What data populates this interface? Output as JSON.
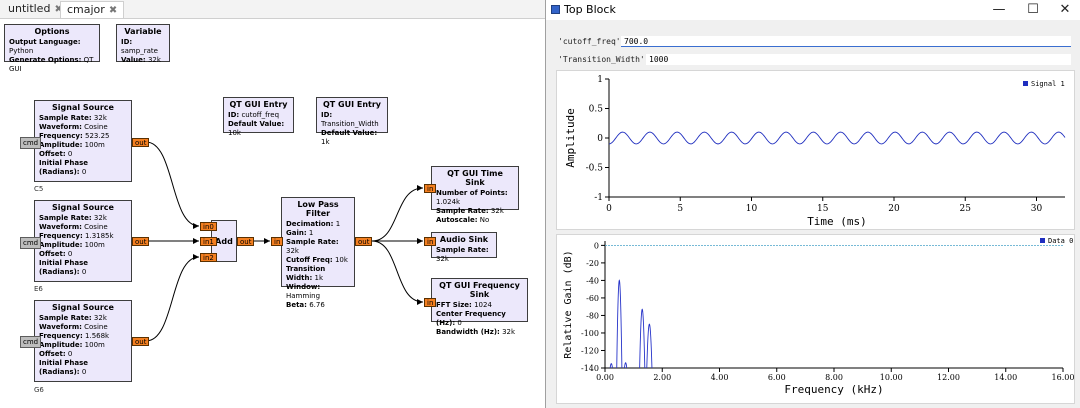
{
  "editor": {
    "tabs": [
      {
        "label": "untitled",
        "close": "✖"
      },
      {
        "label": "cmajor",
        "close": "✖"
      }
    ],
    "options_block": {
      "title": "Options",
      "lines": [
        {
          "k": "Output Language:",
          "v": "Python"
        },
        {
          "k": "Generate Options:",
          "v": "QT GUI"
        }
      ]
    },
    "variable_block": {
      "title": "Variable",
      "lines": [
        {
          "k": "ID:",
          "v": "samp_rate"
        },
        {
          "k": "Value:",
          "v": "32k"
        }
      ]
    },
    "sources": [
      {
        "title": "Signal Source",
        "caption": "C5",
        "lines": [
          {
            "k": "Sample Rate:",
            "v": "32k"
          },
          {
            "k": "Waveform:",
            "v": "Cosine"
          },
          {
            "k": "Frequency:",
            "v": "523.25"
          },
          {
            "k": "Amplitude:",
            "v": "100m"
          },
          {
            "k": "Offset:",
            "v": "0"
          },
          {
            "k": "Initial Phase (Radians):",
            "v": "0"
          }
        ]
      },
      {
        "title": "Signal Source",
        "caption": "E6",
        "lines": [
          {
            "k": "Sample Rate:",
            "v": "32k"
          },
          {
            "k": "Waveform:",
            "v": "Cosine"
          },
          {
            "k": "Frequency:",
            "v": "1.3185k"
          },
          {
            "k": "Amplitude:",
            "v": "100m"
          },
          {
            "k": "Offset:",
            "v": "0"
          },
          {
            "k": "Initial Phase (Radians):",
            "v": "0"
          }
        ]
      },
      {
        "title": "Signal Source",
        "caption": "G6",
        "lines": [
          {
            "k": "Sample Rate:",
            "v": "32k"
          },
          {
            "k": "Waveform:",
            "v": "Cosine"
          },
          {
            "k": "Frequency:",
            "v": "1.568k"
          },
          {
            "k": "Amplitude:",
            "v": "100m"
          },
          {
            "k": "Offset:",
            "v": "0"
          },
          {
            "k": "Initial Phase (Radians):",
            "v": "0"
          }
        ]
      }
    ],
    "entry_blocks": [
      {
        "title": "QT GUI Entry",
        "lines": [
          {
            "k": "ID:",
            "v": "cutoff_freq"
          },
          {
            "k": "Default Value:",
            "v": "10k"
          }
        ]
      },
      {
        "title": "QT GUI Entry",
        "lines": [
          {
            "k": "ID:",
            "v": "Transition_Width"
          },
          {
            "k": "Default Value:",
            "v": "1k"
          }
        ]
      }
    ],
    "add_block": {
      "title": "Add",
      "in_ports": [
        "in0",
        "in1",
        "in2"
      ],
      "out_port": "out"
    },
    "lpf_block": {
      "title": "Low Pass Filter",
      "lines": [
        {
          "k": "Decimation:",
          "v": "1"
        },
        {
          "k": "Gain:",
          "v": "1"
        },
        {
          "k": "Sample Rate:",
          "v": "32k"
        },
        {
          "k": "Cutoff Freq:",
          "v": "10k"
        },
        {
          "k": "Transition Width:",
          "v": "1k"
        },
        {
          "k": "Window:",
          "v": "Hamming"
        },
        {
          "k": "Beta:",
          "v": "6.76"
        }
      ]
    },
    "time_sink": {
      "title": "QT GUI Time Sink",
      "lines": [
        {
          "k": "Number of Points:",
          "v": "1.024k"
        },
        {
          "k": "Sample Rate:",
          "v": "32k"
        },
        {
          "k": "Autoscale:",
          "v": "No"
        }
      ]
    },
    "audio_sink": {
      "title": "Audio Sink",
      "lines": [
        {
          "k": "Sample Rate:",
          "v": "32k"
        }
      ]
    },
    "freq_sink": {
      "title": "QT GUI Frequency Sink",
      "lines": [
        {
          "k": "FFT Size:",
          "v": "1024"
        },
        {
          "k": "Center Frequency (Hz):",
          "v": "0"
        },
        {
          "k": "Bandwidth (Hz):",
          "v": "32k"
        }
      ]
    },
    "port_labels": {
      "out": "out",
      "in": "in",
      "cmd": "cmd"
    }
  },
  "window": {
    "title": "Top Block",
    "controls": {
      "minimize": "—",
      "maximize": "☐",
      "close": "✕"
    },
    "params": [
      {
        "label": "'cutoff_freq':",
        "value": "700.0"
      },
      {
        "label": "'Transition_Width':",
        "value": "1000"
      }
    ]
  },
  "time_plot": {
    "ylabel": "Amplitude",
    "xlabel": "Time (ms)",
    "legend": "Signal 1",
    "color": "#1f2ebf"
  },
  "freq_plot": {
    "ylabel": "Relative Gain (dB)",
    "xlabel": "Frequency (kHz)",
    "legend": "Data 0",
    "color": "#2633c9"
  },
  "chart_data": [
    {
      "type": "line",
      "series": [
        {
          "name": "Signal 1",
          "frequency_khz": 0.523,
          "amplitude": 0.1
        }
      ],
      "xlabel": "Time (ms)",
      "ylabel": "Amplitude",
      "xlim": [
        0,
        32
      ],
      "ylim": [
        -1,
        1
      ],
      "x_ticks": [
        "0",
        "5",
        "10",
        "15",
        "20",
        "25",
        "30"
      ],
      "y_ticks": [
        "-1",
        "-0.5",
        "0",
        "0.5",
        "1"
      ],
      "legend_position": "top-right"
    },
    {
      "type": "line",
      "series": [
        {
          "name": "Data 0",
          "peaks": [
            {
              "x": 0.5,
              "y": -40
            },
            {
              "x": 1.3,
              "y": -73
            },
            {
              "x": 1.55,
              "y": -90
            }
          ]
        }
      ],
      "xlabel": "Frequency (kHz)",
      "ylabel": "Relative Gain (dB)",
      "xlim": [
        0,
        16
      ],
      "ylim": [
        -140,
        5
      ],
      "x_ticks": [
        "0.00",
        "2.00",
        "4.00",
        "6.00",
        "8.00",
        "10.00",
        "12.00",
        "14.00",
        "16.00"
      ],
      "y_ticks": [
        "0",
        "-20",
        "-40",
        "-60",
        "-80",
        "-100",
        "-120",
        "-140"
      ],
      "legend_position": "top-right"
    }
  ]
}
